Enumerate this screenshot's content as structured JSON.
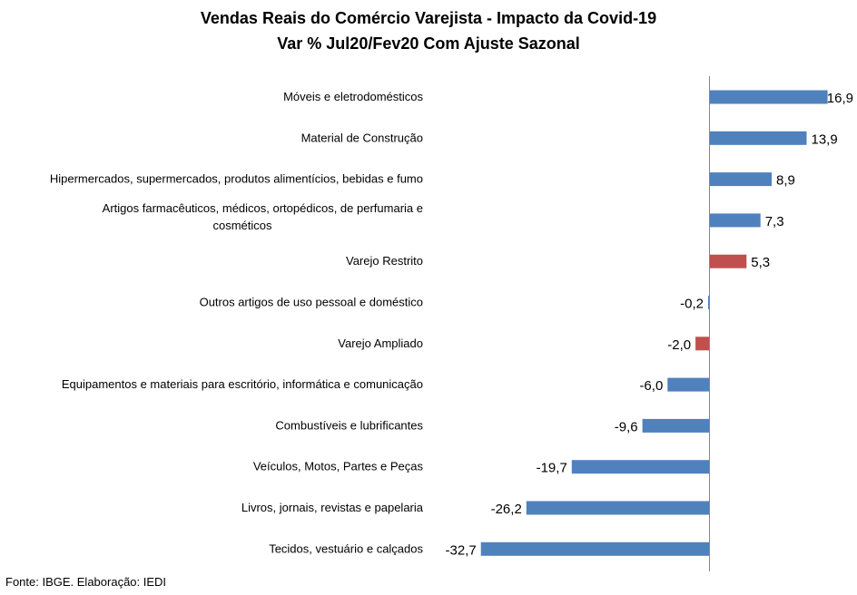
{
  "chart_data": {
    "type": "bar",
    "orientation": "horizontal",
    "title": "Vendas Reais do Comércio Varejista - Impacto da Covid-19",
    "subtitle": "Var % Jul20/Fev20 Com Ajuste Sazonal",
    "categories": [
      "Móveis e eletrodomésticos",
      "Material de Construção",
      "Hipermercados, supermercados, produtos alimentícios, bebidas e fumo",
      "Artigos farmacêuticos, médicos, ortopédicos, de perfumaria e cosméticos",
      "Varejo Restrito",
      "Outros artigos de uso pessoal e doméstico",
      "Varejo Ampliado",
      "Equipamentos e materiais para escritório, informática e comunicação",
      "Combustíveis e lubrificantes",
      "Veículos, Motos, Partes e Peças",
      "Livros, jornais, revistas e papelaria",
      "Tecidos, vestuário e calçados"
    ],
    "values": [
      16.9,
      13.9,
      8.9,
      7.3,
      5.3,
      -0.2,
      -2.0,
      -6.0,
      -9.6,
      -19.7,
      -26.2,
      -32.7
    ],
    "value_labels": [
      "16,9",
      "13,9",
      "8,9",
      "7,3",
      "5,3",
      "-0,2",
      "-2,0",
      "-6,0",
      "-9,6",
      "-19,7",
      "-26,2",
      "-32,7"
    ],
    "highlight_categories": [
      "Varejo Restrito",
      "Varejo Ampliado"
    ],
    "xlim": [
      -36,
      18
    ],
    "grid": false,
    "legend": "none",
    "colors": {
      "default_bar": "#4f81bd",
      "highlight_bar": "#c0504d",
      "axis": "#868686"
    }
  },
  "source": "Fonte: IBGE. Elaboração: IEDI"
}
